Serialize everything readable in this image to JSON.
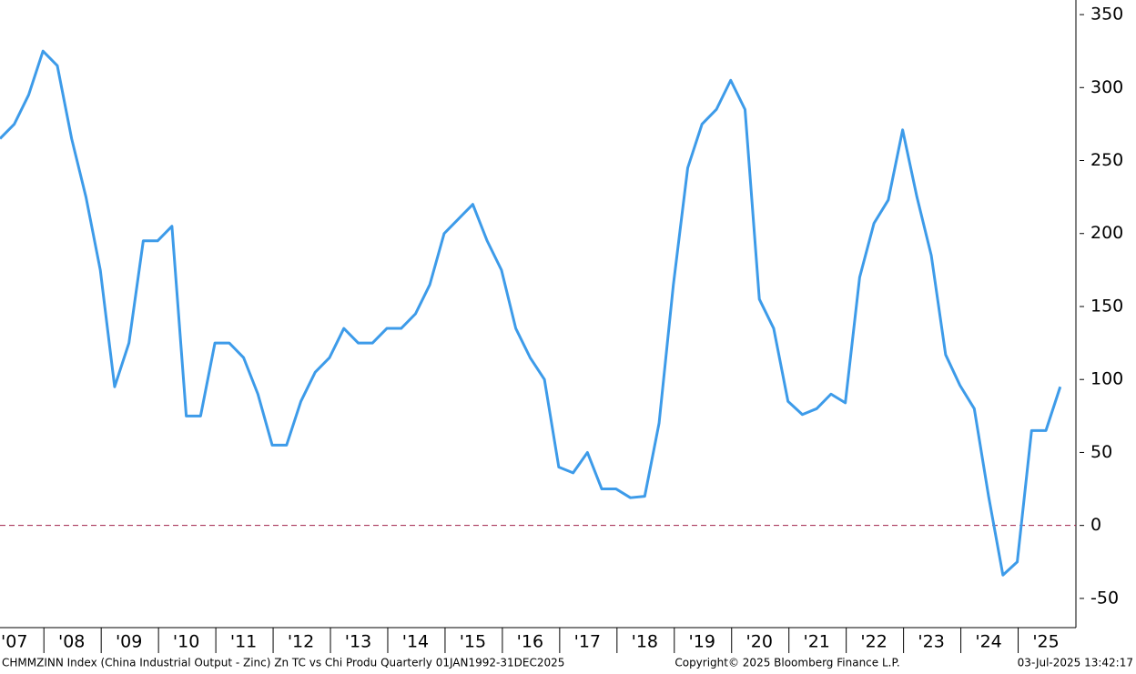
{
  "chart_data": {
    "type": "line",
    "categories": [
      null,
      "'07",
      null,
      null,
      null,
      "'08",
      null,
      null,
      null,
      "'09",
      null,
      null,
      null,
      "'10",
      null,
      null,
      null,
      "'11",
      null,
      null,
      null,
      "'12",
      null,
      null,
      null,
      "'13",
      null,
      null,
      null,
      "'14",
      null,
      null,
      null,
      "'15",
      null,
      null,
      null,
      "'16",
      null,
      null,
      null,
      "'17",
      null,
      null,
      null,
      "'18",
      null,
      null,
      null,
      "'19",
      null,
      null,
      null,
      "'20",
      null,
      null,
      null,
      "'21",
      null,
      null,
      null,
      "'22",
      null,
      null,
      null,
      "'23",
      null,
      null,
      null,
      "'24",
      null,
      null,
      null,
      "'25",
      null
    ],
    "series": [
      {
        "color": "#3d9be9",
        "values": [
          265,
          275,
          295,
          325,
          315,
          265,
          225,
          175,
          95,
          125,
          195,
          195,
          205,
          75,
          75,
          125,
          125,
          115,
          90,
          55,
          55,
          85,
          105,
          115,
          135,
          125,
          125,
          135,
          135,
          145,
          165,
          200,
          210,
          220,
          195,
          175,
          135,
          115,
          100,
          40,
          36,
          50,
          25,
          25,
          19,
          20,
          70,
          165,
          245,
          275,
          285,
          305,
          285,
          155,
          135,
          85,
          76,
          80,
          90,
          84,
          170,
          207,
          223,
          271,
          225,
          185,
          117,
          96,
          80,
          20,
          -34,
          -25,
          65,
          65,
          95
        ]
      }
    ],
    "ylim": [
      -70,
      360
    ],
    "yticks": [
      -50,
      0,
      50,
      100,
      150,
      200,
      250,
      300,
      350
    ],
    "reference_line": 0,
    "reference_color": "#a0204a",
    "footer": {
      "source": "CHMMZINN Index (China Industrial Output - Zinc) Zn TC vs Chi Produ  Quarterly 01JAN1992-31DEC2025",
      "copyright": "Copyright© 2025 Bloomberg Finance L.P.",
      "timestamp": "03-Jul-2025 13:42:17"
    }
  }
}
